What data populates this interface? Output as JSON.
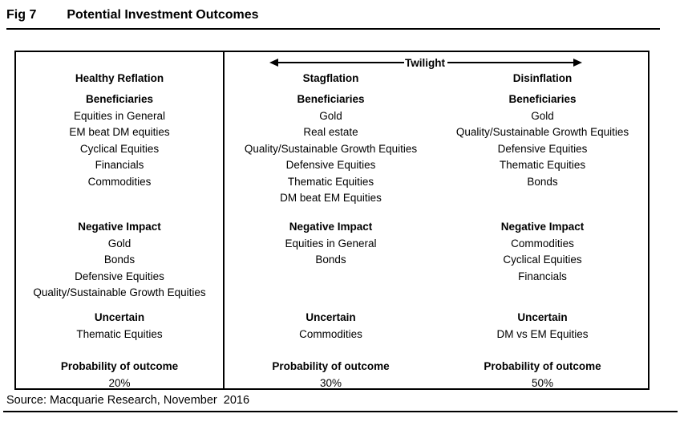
{
  "figure": {
    "label": "Fig 7",
    "title": "Potential Investment Outcomes"
  },
  "table": {
    "twilight_label": "Twilight",
    "section_labels": {
      "beneficiaries": "Beneficiaries",
      "negative_impact": "Negative Impact",
      "uncertain": "Uncertain",
      "probability": "Probability of outcome"
    },
    "columns": [
      {
        "header": "Healthy Reflation",
        "beneficiaries": [
          "Equities in General",
          "EM beat DM equities",
          "Cyclical Equities",
          "Financials",
          "Commodities"
        ],
        "negative_impact": [
          "Gold",
          "Bonds",
          "Defensive Equities",
          "Quality/Sustainable Growth Equities"
        ],
        "uncertain": [
          "Thematic Equities"
        ],
        "probability": "20%"
      },
      {
        "header": "Stagflation",
        "beneficiaries": [
          "Gold",
          "Real estate",
          "Quality/Sustainable Growth Equities",
          "Defensive Equities",
          "Thematic Equities",
          "DM beat EM Equities"
        ],
        "negative_impact": [
          "Equities in General",
          "Bonds"
        ],
        "uncertain": [
          "Commodities"
        ],
        "probability": "30%"
      },
      {
        "header": "Disinflation",
        "beneficiaries": [
          "Gold",
          "Quality/Sustainable Growth Equities",
          "Defensive Equities",
          "Thematic Equities",
          "Bonds"
        ],
        "negative_impact": [
          "Commodities",
          "Cyclical Equities",
          "Financials"
        ],
        "uncertain": [
          "DM vs EM Equities"
        ],
        "probability": "50%"
      }
    ]
  },
  "source": "Source: Macquarie Research, November  2016",
  "icons": {
    "twilight_arrow": "double-headed-horizontal-arrow"
  },
  "colors": {
    "text": "#000000",
    "border": "#000000",
    "background": "#ffffff"
  }
}
